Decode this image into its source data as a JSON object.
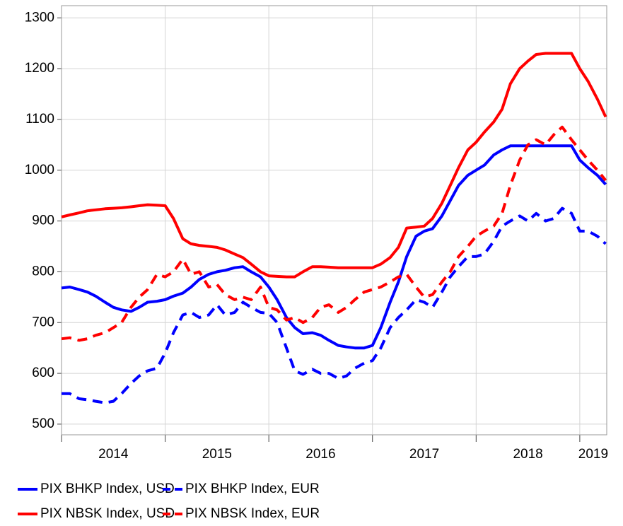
{
  "chart_data": {
    "type": "line",
    "x": [
      2014,
      2014.08,
      2014.17,
      2014.25,
      2014.33,
      2014.42,
      2014.5,
      2014.58,
      2014.67,
      2014.75,
      2014.83,
      2014.92,
      2015,
      2015.08,
      2015.17,
      2015.25,
      2015.33,
      2015.42,
      2015.5,
      2015.58,
      2015.67,
      2015.75,
      2015.83,
      2015.92,
      2016,
      2016.08,
      2016.17,
      2016.25,
      2016.33,
      2016.42,
      2016.5,
      2016.58,
      2016.67,
      2016.75,
      2016.83,
      2016.92,
      2017,
      2017.08,
      2017.17,
      2017.25,
      2017.33,
      2017.42,
      2017.5,
      2017.58,
      2017.67,
      2017.75,
      2017.83,
      2017.92,
      2018,
      2018.08,
      2018.17,
      2018.25,
      2018.33,
      2018.42,
      2018.5,
      2018.58,
      2018.67,
      2018.75,
      2018.83,
      2018.92,
      2019,
      2019.08,
      2019.17,
      2019.25
    ],
    "series": [
      {
        "name": "PIX BHKP Index, USD",
        "color": "#0000ff",
        "dashed": false,
        "values": [
          768,
          770,
          765,
          760,
          752,
          740,
          730,
          725,
          722,
          730,
          740,
          742,
          745,
          752,
          758,
          770,
          785,
          795,
          800,
          803,
          808,
          810,
          800,
          790,
          770,
          745,
          710,
          690,
          678,
          680,
          675,
          665,
          655,
          652,
          650,
          650,
          655,
          690,
          740,
          780,
          830,
          870,
          880,
          885,
          910,
          940,
          970,
          990,
          1000,
          1010,
          1030,
          1040,
          1048,
          1048,
          1048,
          1048,
          1048,
          1048,
          1048,
          1048,
          1020,
          1005,
          990,
          972
        ]
      },
      {
        "name": "PIX BHKP Index, EUR",
        "color": "#0000ff",
        "dashed": true,
        "values": [
          560,
          560,
          550,
          548,
          545,
          542,
          545,
          560,
          580,
          595,
          605,
          610,
          640,
          680,
          715,
          720,
          710,
          715,
          735,
          715,
          720,
          740,
          730,
          720,
          718,
          700,
          650,
          605,
          598,
          608,
          600,
          600,
          590,
          595,
          610,
          620,
          625,
          650,
          690,
          710,
          725,
          745,
          740,
          730,
          760,
          790,
          810,
          830,
          830,
          835,
          860,
          890,
          900,
          910,
          900,
          915,
          900,
          905,
          925,
          915,
          880,
          880,
          870,
          855
        ]
      },
      {
        "name": "PIX NBSK Index, USD",
        "color": "#ff0000",
        "dashed": false,
        "values": [
          908,
          912,
          916,
          920,
          922,
          924,
          925,
          926,
          928,
          930,
          932,
          931,
          930,
          905,
          865,
          855,
          852,
          850,
          848,
          843,
          835,
          828,
          815,
          800,
          792,
          791,
          790,
          790,
          800,
          810,
          810,
          809,
          808,
          808,
          808,
          808,
          808,
          815,
          828,
          848,
          886,
          888,
          890,
          905,
          935,
          970,
          1005,
          1040,
          1055,
          1075,
          1095,
          1120,
          1170,
          1200,
          1215,
          1228,
          1230,
          1230,
          1230,
          1230,
          1200,
          1175,
          1140,
          1105
        ]
      },
      {
        "name": "PIX NBSK Index, EUR",
        "color": "#ff0000",
        "dashed": true,
        "values": [
          668,
          670,
          665,
          668,
          675,
          680,
          690,
          700,
          730,
          750,
          765,
          795,
          790,
          800,
          825,
          795,
          800,
          770,
          775,
          755,
          745,
          750,
          745,
          770,
          730,
          725,
          705,
          710,
          700,
          710,
          730,
          735,
          720,
          730,
          745,
          760,
          765,
          770,
          780,
          790,
          795,
          770,
          750,
          755,
          780,
          800,
          830,
          850,
          870,
          880,
          890,
          915,
          970,
          1020,
          1050,
          1060,
          1050,
          1070,
          1085,
          1060,
          1040,
          1020,
          1000,
          980
        ]
      }
    ],
    "xlim": [
      2014,
      2019.26
    ],
    "xticks": [
      2014,
      2015,
      2016,
      2017,
      2018,
      2019
    ],
    "ylim": [
      479,
      1324
    ],
    "yticks": [
      500,
      600,
      700,
      800,
      900,
      1000,
      1100,
      1200,
      1300
    ],
    "grid": true,
    "legend": "bottom"
  }
}
